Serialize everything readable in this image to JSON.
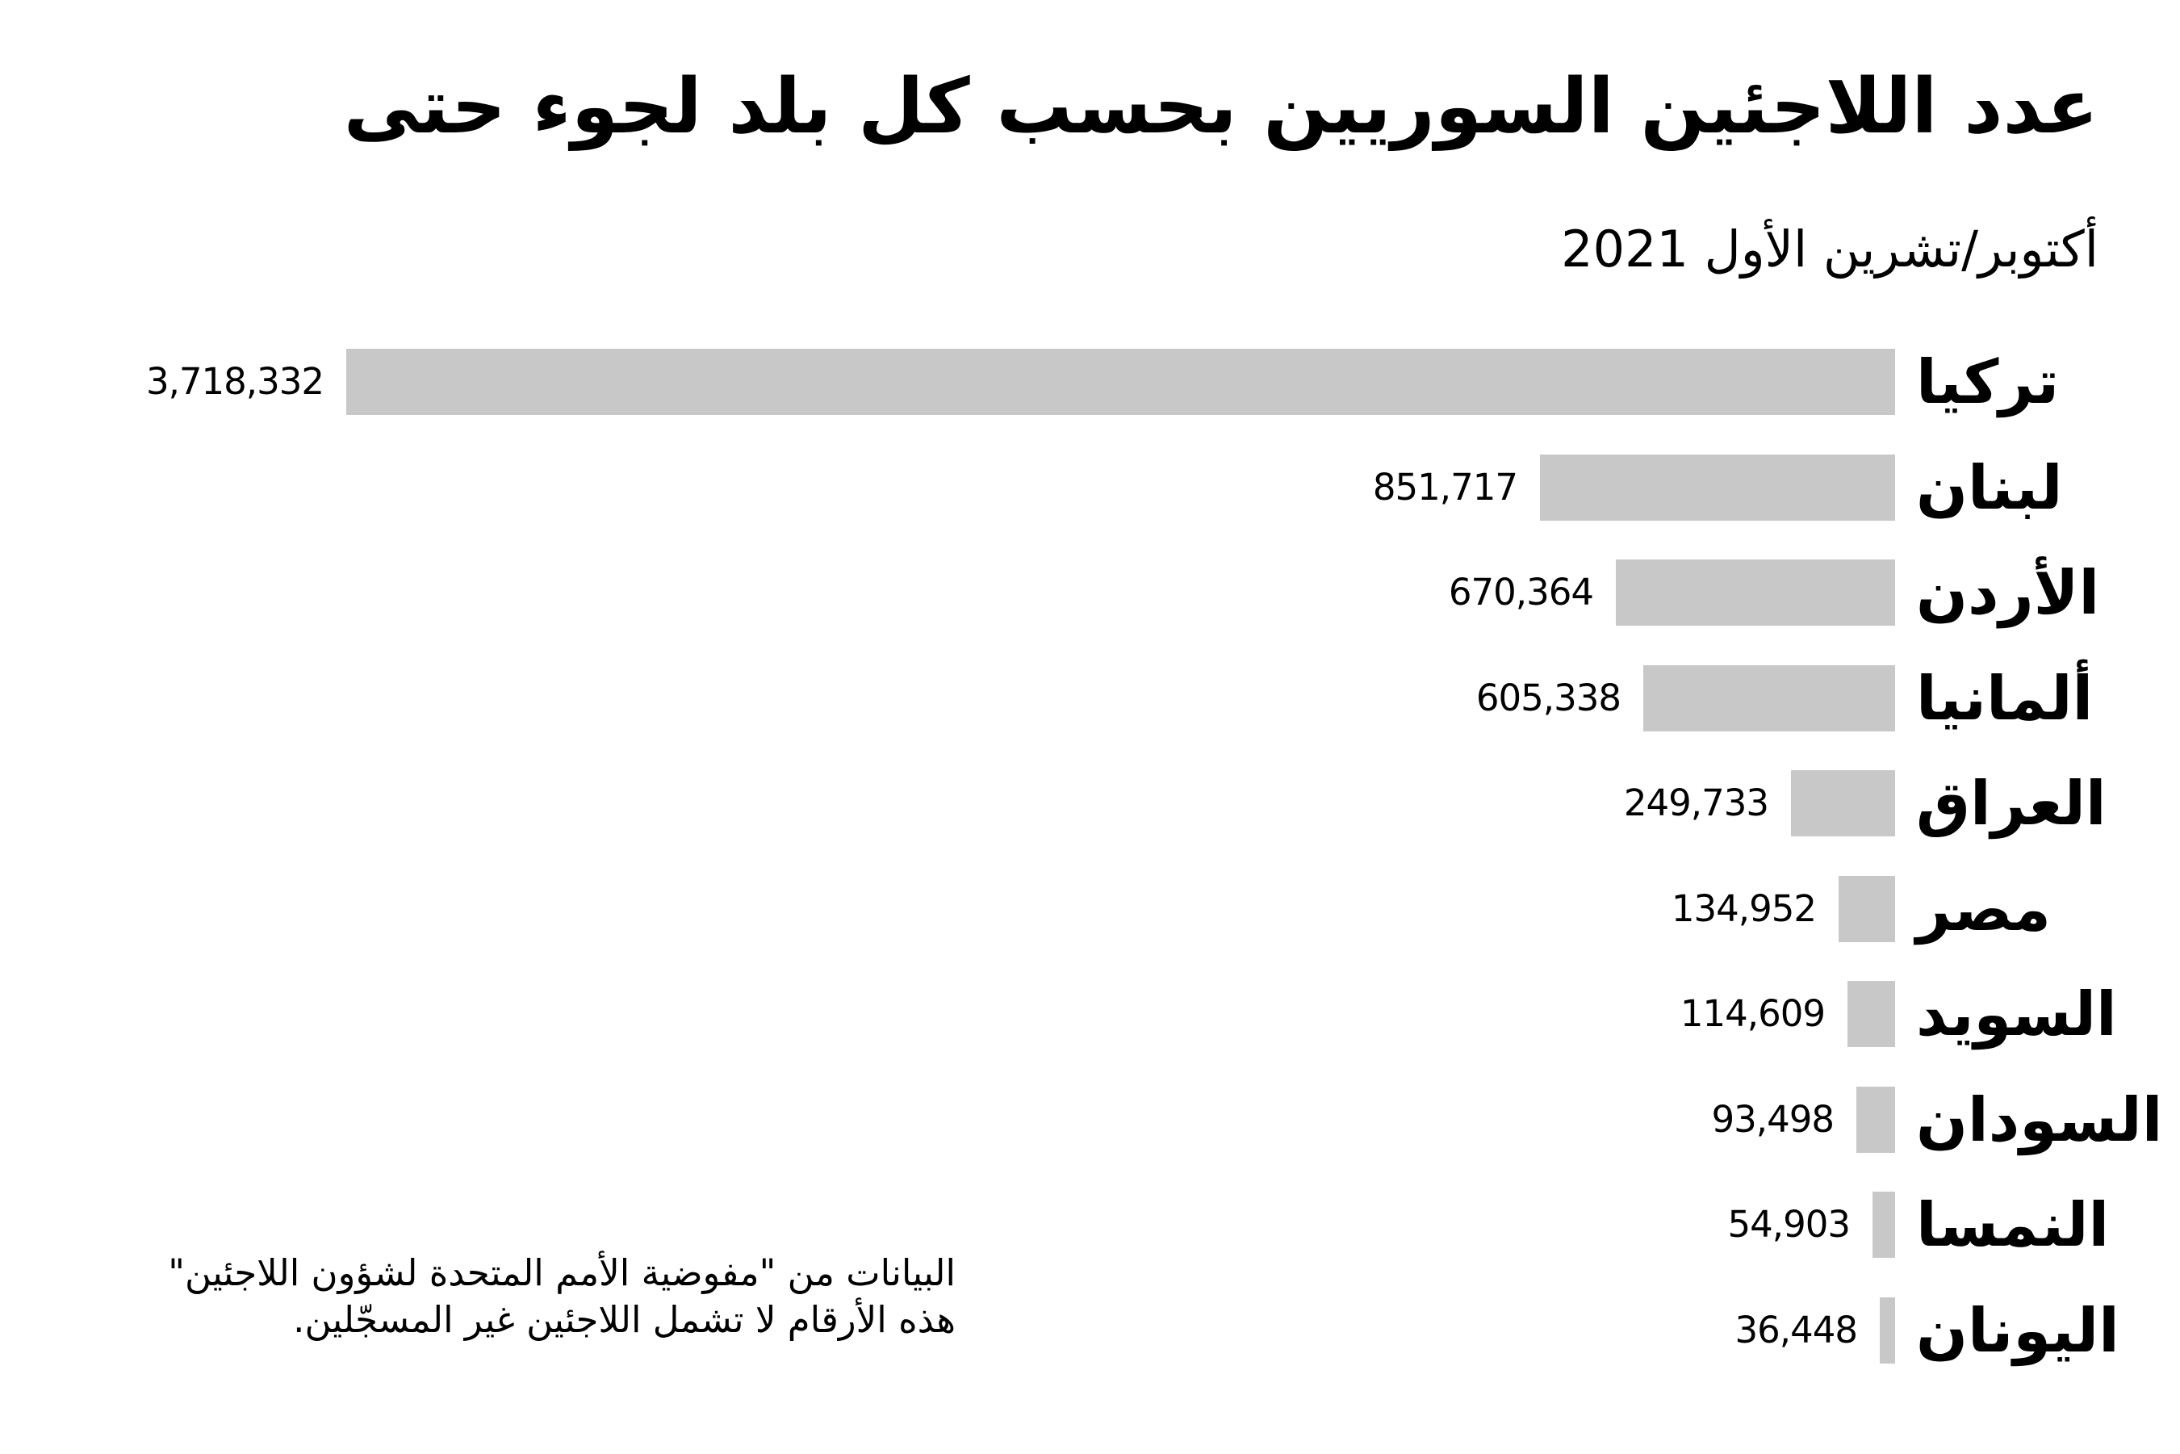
{
  "title": {
    "line1": "عدد اللاجئين السوريين بحسب كل بلد لجوء حتى",
    "line2": "أكتوبر/تشرين الأول 2021"
  },
  "footnote": {
    "line1": "البيانات من \"مفوضية الأمم المتحدة لشؤون اللاجئين\"",
    "line2": "هذه الأرقام لا تشمل اللاجئين غير المسجّلين."
  },
  "colors": {
    "bar": "#c8c8c8",
    "text": "#000000",
    "background": "#ffffff"
  },
  "chart_data": {
    "type": "bar",
    "orientation": "horizontal",
    "direction": "rtl",
    "title": "عدد اللاجئين السوريين بحسب كل بلد لجوء حتى أكتوبر/تشرين الأول 2021",
    "categories": [
      "تركيا",
      "لبنان",
      "الأردن",
      "ألمانيا",
      "العراق",
      "مصر",
      "السويد",
      "السودان",
      "النمسا",
      "اليونان"
    ],
    "values": [
      3718332,
      851717,
      670364,
      605338,
      249733,
      134952,
      114609,
      93498,
      54903,
      36448
    ],
    "value_labels": [
      "3,718,332",
      "851,717",
      "670,364",
      "605,338",
      "249,733",
      "134,952",
      "114,609",
      "93,498",
      "54,903",
      "36,448"
    ],
    "xlim": [
      0,
      3718332
    ],
    "grid": false,
    "legend": false
  }
}
